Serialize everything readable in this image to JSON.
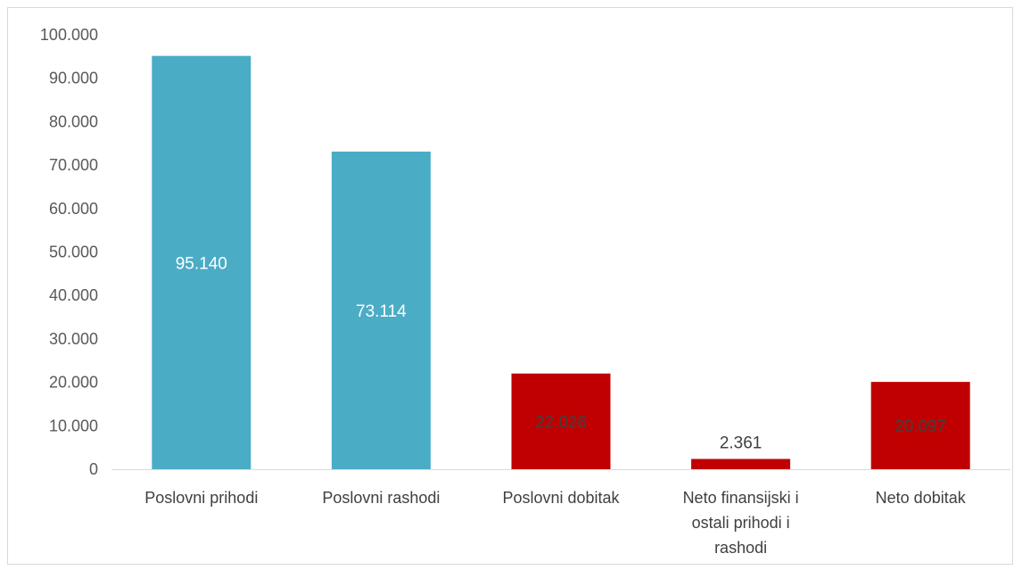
{
  "chart_data": {
    "type": "bar",
    "categories": [
      [
        "Poslovni prihodi"
      ],
      [
        "Poslovni rashodi"
      ],
      [
        "Poslovni dobitak"
      ],
      [
        "Neto finansijski i",
        "ostali prihodi i",
        "rashodi"
      ],
      [
        "Neto dobitak"
      ]
    ],
    "values": [
      95140,
      73114,
      22026,
      2361,
      20097
    ],
    "data_labels": [
      "95.140",
      "73.114",
      "22.026",
      "2.361",
      "20.097"
    ],
    "bar_colors": [
      "#4bacc6",
      "#4bacc6",
      "#c00000",
      "#c00000",
      "#c00000"
    ],
    "label_colors": [
      "#ffffff",
      "#ffffff",
      "#404040",
      "#404040",
      "#404040"
    ],
    "label_position": [
      "inside",
      "inside",
      "inside",
      "above",
      "inside"
    ],
    "ylim": [
      0,
      100000
    ],
    "y_ticks": [
      0,
      10000,
      20000,
      30000,
      40000,
      50000,
      60000,
      70000,
      80000,
      90000,
      100000
    ],
    "y_tick_labels": [
      "0",
      "10.000",
      "20.000",
      "30.000",
      "40.000",
      "50.000",
      "60.000",
      "70.000",
      "80.000",
      "90.000",
      "100.000"
    ],
    "grid": false,
    "axis_color": "#d9d9d9"
  }
}
